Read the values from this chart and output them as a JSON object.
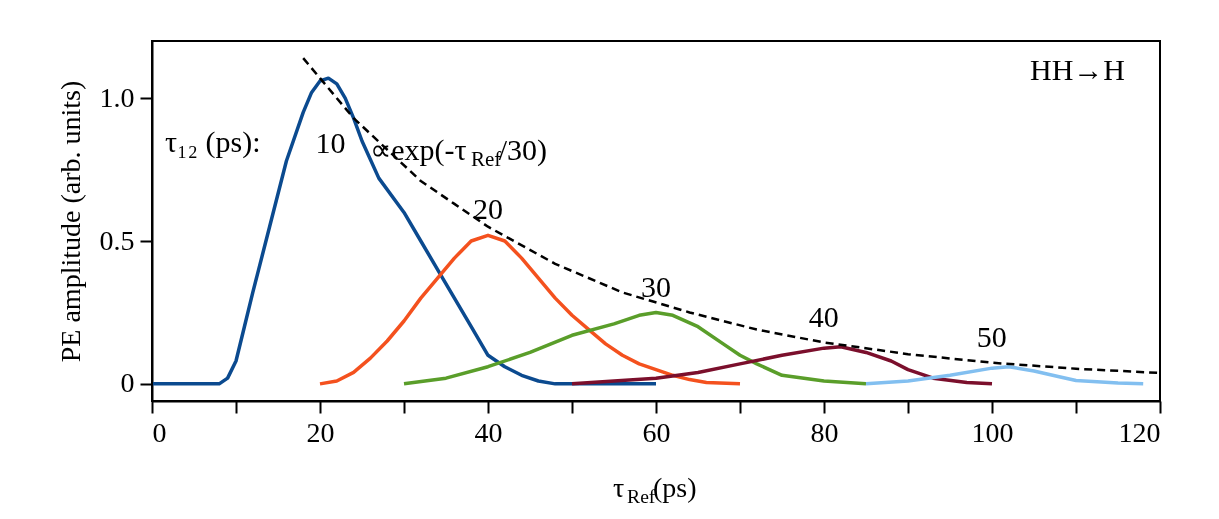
{
  "chart_data": {
    "type": "line",
    "xlabel": "τ$_{Ref}$(ps)",
    "ylabel": "PE amplitude (arb. units)",
    "xlim": [
      0,
      120
    ],
    "ylim": [
      -0.06,
      1.2
    ],
    "xticks": [
      0,
      {
        "value": 10,
        "label": null
      },
      20,
      {
        "value": 30,
        "label": null
      },
      40,
      {
        "value": 50,
        "label": null
      },
      60,
      {
        "value": 70,
        "label": null
      },
      80,
      {
        "value": 90,
        "label": null
      },
      100,
      {
        "value": 110,
        "label": null
      },
      120
    ],
    "yticks": [
      {
        "value": 0,
        "label": "0"
      },
      0.5,
      {
        "value": 1,
        "label": "1.0"
      }
    ],
    "grid": false,
    "legend": false,
    "marker": "none",
    "series": [
      {
        "name": "10",
        "color": "#0b4a8f",
        "x": [
          0,
          8,
          9,
          10,
          11,
          12,
          14,
          16,
          18,
          19,
          20,
          21,
          22,
          23,
          24,
          25,
          27,
          30,
          32,
          34,
          36,
          38,
          40,
          42,
          44,
          46,
          48,
          60
        ],
        "values": [
          0,
          0,
          0.02,
          0.08,
          0.2,
          0.32,
          0.55,
          0.78,
          0.95,
          1.02,
          1.06,
          1.07,
          1.05,
          1.0,
          0.93,
          0.85,
          0.72,
          0.6,
          0.5,
          0.4,
          0.3,
          0.2,
          0.1,
          0.06,
          0.03,
          0.01,
          0,
          0
        ]
      },
      {
        "name": "20",
        "color": "#f4511e",
        "x": [
          20,
          22,
          24,
          26,
          28,
          30,
          32,
          34,
          36,
          38,
          40,
          42,
          44,
          46,
          48,
          50,
          52,
          54,
          56,
          58,
          60,
          62,
          64,
          66,
          70
        ],
        "values": [
          0,
          0.01,
          0.04,
          0.09,
          0.15,
          0.22,
          0.3,
          0.37,
          0.44,
          0.5,
          0.52,
          0.5,
          0.44,
          0.37,
          0.3,
          0.24,
          0.19,
          0.14,
          0.1,
          0.07,
          0.05,
          0.03,
          0.015,
          0.005,
          0
        ]
      },
      {
        "name": "30",
        "color": "#5a9e2a",
        "x": [
          30,
          35,
          40,
          45,
          50,
          55,
          58,
          60,
          62,
          65,
          68,
          70,
          72,
          75,
          80,
          85
        ],
        "values": [
          0,
          0.02,
          0.06,
          0.11,
          0.17,
          0.21,
          0.24,
          0.25,
          0.24,
          0.2,
          0.14,
          0.1,
          0.07,
          0.03,
          0.01,
          0
        ]
      },
      {
        "name": "40",
        "color": "#7b0f2c",
        "x": [
          50,
          55,
          60,
          65,
          70,
          75,
          80,
          82,
          85,
          88,
          90,
          93,
          97,
          100
        ],
        "values": [
          0,
          0.01,
          0.02,
          0.04,
          0.07,
          0.1,
          0.125,
          0.13,
          0.11,
          0.08,
          0.05,
          0.02,
          0.005,
          0
        ]
      },
      {
        "name": "50",
        "color": "#82bff0",
        "x": [
          85,
          90,
          95,
          100,
          102,
          105,
          108,
          110,
          115,
          118
        ],
        "values": [
          0,
          0.01,
          0.03,
          0.055,
          0.06,
          0.045,
          0.025,
          0.012,
          0.003,
          0
        ]
      },
      {
        "name": "∝exp(-τ$_{Ref}$/30)",
        "color": "#000000",
        "line_style": "dashed",
        "x": [
          18,
          20,
          24,
          28,
          32,
          36,
          40,
          48,
          56,
          64,
          72,
          80,
          90,
          100,
          110,
          120
        ],
        "values": [
          1.14,
          1.07,
          0.93,
          0.82,
          0.71,
          0.63,
          0.55,
          0.42,
          0.32,
          0.25,
          0.19,
          0.145,
          0.104,
          0.074,
          0.053,
          0.038
        ]
      }
    ],
    "annotations": [
      "HH→H",
      "τ₁₂ (ps):"
    ]
  }
}
